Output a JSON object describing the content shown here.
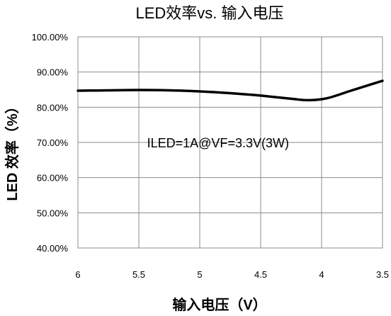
{
  "chart_data": {
    "type": "line",
    "title": "LED效率vs. 输入电压",
    "xlabel": "输入电压（V）",
    "ylabel": "LED 效率（%）",
    "x_reversed": true,
    "xlim": [
      6,
      3.5
    ],
    "ylim": [
      40,
      100
    ],
    "x_ticks": [
      6,
      5.5,
      5,
      4.5,
      4,
      3.5
    ],
    "x_tick_labels": [
      "6",
      "5.5",
      "5",
      "4.5",
      "4",
      "3.5"
    ],
    "y_ticks": [
      40,
      50,
      60,
      70,
      80,
      90,
      100
    ],
    "y_tick_labels": [
      "40.00%",
      "50.00%",
      "60.00%",
      "70.00%",
      "80.00%",
      "90.00%",
      "100.00%"
    ],
    "grid": true,
    "legend": "none",
    "series": [
      {
        "color": "#000000",
        "x": [
          6.0,
          5.75,
          5.5,
          5.25,
          5.0,
          4.75,
          4.5,
          4.25,
          4.1,
          3.95,
          3.75,
          3.5
        ],
        "y": [
          84.7,
          84.8,
          84.9,
          84.8,
          84.5,
          84.0,
          83.3,
          82.4,
          82.0,
          82.6,
          84.8,
          87.5
        ]
      }
    ],
    "annotation": {
      "text": "ILED=1A@VF=3.3V(3W)",
      "x": 4.85,
      "y": 69.8
    }
  }
}
